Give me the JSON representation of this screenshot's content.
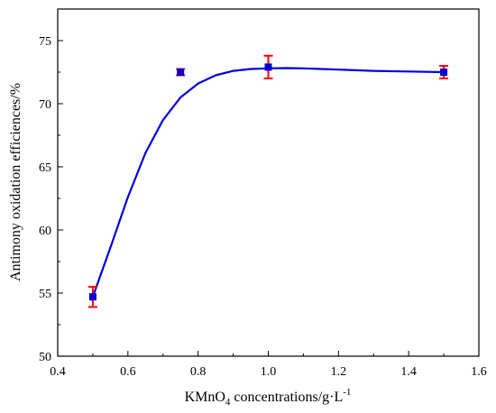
{
  "chart_data": {
    "type": "scatter",
    "title": "",
    "xlabel": {
      "prefix": "KMnO",
      "subscript": "4",
      "middle": " concentrations/g·L",
      "superscript": "-1"
    },
    "ylabel": "Antimony oxidation efficiences/%",
    "xlim": [
      0.4,
      1.6
    ],
    "ylim": [
      50,
      77.5
    ],
    "xticks": [
      0.4,
      0.6,
      0.8,
      1.0,
      1.2,
      1.4,
      1.6
    ],
    "xtick_labels": [
      "0.4",
      "0.6",
      "0.8",
      "1.0",
      "1.2",
      "1.4",
      "1.6"
    ],
    "yticks": [
      50,
      55,
      60,
      65,
      70,
      75
    ],
    "ytick_labels": [
      "50",
      "55",
      "60",
      "65",
      "70",
      "75"
    ],
    "grid": false,
    "series": [
      {
        "x": [
          0.5,
          0.75,
          1.0,
          1.5
        ],
        "y": [
          54.7,
          72.5,
          72.9,
          72.5
        ],
        "error": [
          0.8,
          0.25,
          0.9,
          0.5
        ],
        "marker": "square",
        "marker_color": "#0000cc",
        "error_color": "#ff0000"
      }
    ],
    "fit_curve": {
      "color": "#0000dd",
      "x": [
        0.5,
        0.55,
        0.6,
        0.65,
        0.7,
        0.75,
        0.8,
        0.85,
        0.9,
        0.95,
        1.0,
        1.05,
        1.1,
        1.15,
        1.2,
        1.3,
        1.4,
        1.5
      ],
      "y": [
        54.7,
        58.6,
        62.6,
        66.1,
        68.7,
        70.5,
        71.6,
        72.25,
        72.6,
        72.75,
        72.8,
        72.82,
        72.8,
        72.75,
        72.7,
        72.6,
        72.55,
        72.5
      ]
    }
  }
}
